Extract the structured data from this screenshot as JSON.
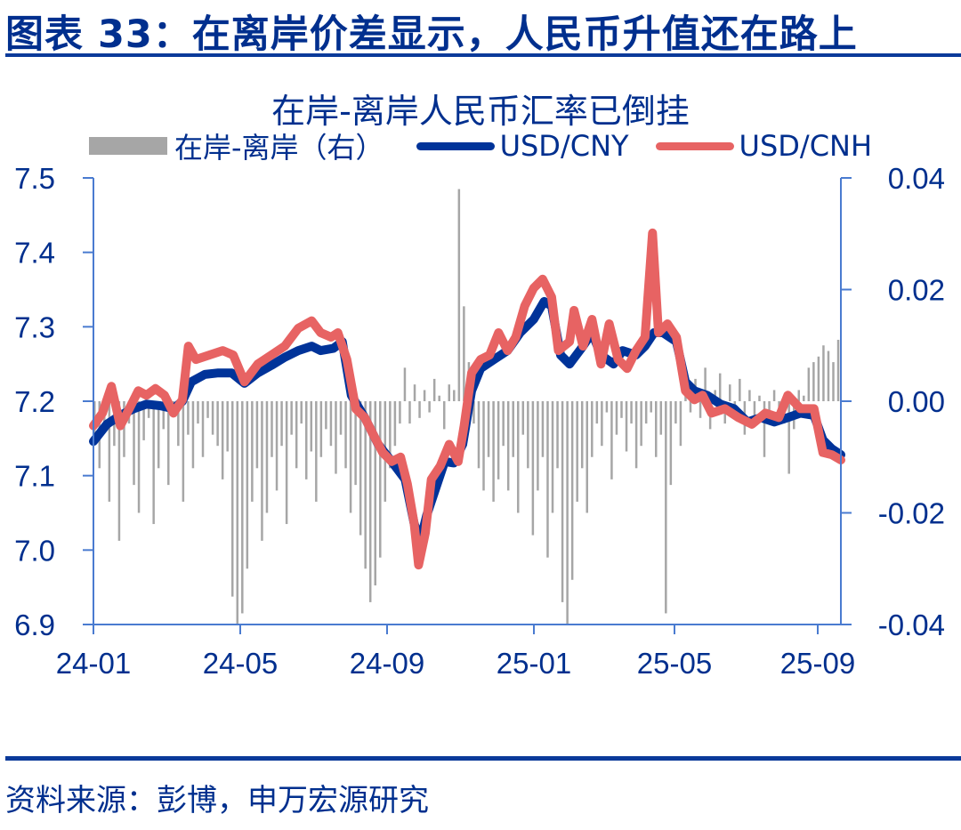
{
  "header": {
    "figure_title": "图表 33：在离岸价差显示，人民币升值还在路上"
  },
  "footer": {
    "source": "资料来源：彭博，申万宏源研究"
  },
  "colors": {
    "title_blue": "#002F8E",
    "axis_blue": "#4A7BD0",
    "cny_line": "#003399",
    "cnh_line": "#E76363",
    "spread_bar": "#A6A6A6"
  },
  "chart_data": {
    "type": "line+bar",
    "title": "在岸-离岸人民币汇率已倒挂",
    "legend": [
      {
        "label": "在岸-离岸（右）",
        "kind": "bar",
        "color": "#A6A6A6"
      },
      {
        "label": "USD/CNY",
        "kind": "line",
        "color": "#003399"
      },
      {
        "label": "USD/CNH",
        "kind": "line",
        "color": "#E76363"
      }
    ],
    "legend_position": "top",
    "grid": false,
    "x_axis": {
      "tick_labels": [
        "24-01",
        "24-05",
        "24-09",
        "25-01",
        "25-05",
        "25-09"
      ],
      "range": [
        "2024-01",
        "2025-09"
      ]
    },
    "y_left": {
      "ylim": [
        6.9,
        7.5
      ],
      "ticks": [
        7.5,
        7.4,
        7.3,
        7.2,
        7.1,
        7.0,
        6.9
      ],
      "tick_labels": [
        "7.5",
        "7.4",
        "7.3",
        "7.2",
        "7.1",
        "7.0",
        "6.9"
      ]
    },
    "y_right": {
      "ylim": [
        -0.04,
        0.04
      ],
      "ticks": [
        0.04,
        0.02,
        0.0,
        -0.02,
        -0.04
      ],
      "tick_labels": [
        "0.04",
        "0.02",
        "0.00",
        "-0.02",
        "-0.04"
      ]
    },
    "series": [
      {
        "name": "USD/CNY",
        "axis": "left",
        "x_frac": [
          0.0,
          0.018,
          0.036,
          0.054,
          0.071,
          0.089,
          0.107,
          0.119,
          0.131,
          0.149,
          0.167,
          0.185,
          0.202,
          0.22,
          0.238,
          0.256,
          0.274,
          0.292,
          0.304,
          0.321,
          0.333,
          0.345,
          0.363,
          0.381,
          0.399,
          0.417,
          0.429,
          0.437,
          0.446,
          0.458,
          0.47,
          0.482,
          0.494,
          0.506,
          0.518,
          0.536,
          0.554,
          0.571,
          0.589,
          0.603,
          0.613,
          0.625,
          0.637,
          0.655,
          0.667,
          0.679,
          0.696,
          0.708,
          0.726,
          0.738,
          0.75,
          0.762,
          0.78,
          0.792,
          0.804,
          0.821,
          0.839,
          0.857,
          0.875,
          0.893,
          0.911,
          0.929,
          0.946,
          0.964,
          0.976,
          0.988,
          1.0
        ],
        "values": [
          7.146,
          7.169,
          7.181,
          7.19,
          7.196,
          7.194,
          7.19,
          7.2,
          7.226,
          7.236,
          7.238,
          7.238,
          7.224,
          7.238,
          7.248,
          7.259,
          7.268,
          7.274,
          7.268,
          7.271,
          7.28,
          7.208,
          7.178,
          7.142,
          7.119,
          7.095,
          7.036,
          7.011,
          7.047,
          7.083,
          7.119,
          7.117,
          7.142,
          7.214,
          7.244,
          7.256,
          7.268,
          7.292,
          7.31,
          7.334,
          7.328,
          7.262,
          7.25,
          7.274,
          7.292,
          7.262,
          7.25,
          7.268,
          7.262,
          7.274,
          7.292,
          7.292,
          7.28,
          7.226,
          7.214,
          7.208,
          7.196,
          7.19,
          7.172,
          7.178,
          7.172,
          7.178,
          7.184,
          7.181,
          7.148,
          7.136,
          7.128
        ]
      },
      {
        "name": "USD/CNH",
        "axis": "left",
        "x_frac": [
          0.0,
          0.012,
          0.024,
          0.036,
          0.048,
          0.06,
          0.071,
          0.083,
          0.095,
          0.107,
          0.119,
          0.127,
          0.137,
          0.155,
          0.173,
          0.187,
          0.202,
          0.22,
          0.238,
          0.256,
          0.274,
          0.292,
          0.304,
          0.318,
          0.327,
          0.339,
          0.351,
          0.363,
          0.375,
          0.387,
          0.399,
          0.411,
          0.42,
          0.429,
          0.435,
          0.444,
          0.452,
          0.464,
          0.476,
          0.488,
          0.496,
          0.506,
          0.518,
          0.53,
          0.542,
          0.554,
          0.565,
          0.577,
          0.589,
          0.601,
          0.613,
          0.622,
          0.637,
          0.643,
          0.655,
          0.667,
          0.679,
          0.69,
          0.702,
          0.714,
          0.726,
          0.738,
          0.748,
          0.756,
          0.768,
          0.78,
          0.792,
          0.804,
          0.815,
          0.827,
          0.845,
          0.863,
          0.881,
          0.899,
          0.917,
          0.929,
          0.946,
          0.964,
          0.976,
          0.988,
          1.0
        ],
        "values": [
          7.167,
          7.184,
          7.22,
          7.167,
          7.19,
          7.214,
          7.208,
          7.217,
          7.208,
          7.184,
          7.202,
          7.274,
          7.256,
          7.262,
          7.268,
          7.262,
          7.226,
          7.25,
          7.262,
          7.274,
          7.298,
          7.308,
          7.292,
          7.286,
          7.292,
          7.256,
          7.19,
          7.178,
          7.154,
          7.131,
          7.119,
          7.125,
          7.089,
          7.036,
          6.98,
          7.023,
          7.095,
          7.113,
          7.142,
          7.119,
          7.167,
          7.238,
          7.256,
          7.262,
          7.292,
          7.268,
          7.286,
          7.328,
          7.352,
          7.364,
          7.34,
          7.268,
          7.28,
          7.322,
          7.274,
          7.31,
          7.25,
          7.304,
          7.256,
          7.244,
          7.268,
          7.286,
          7.426,
          7.292,
          7.304,
          7.286,
          7.214,
          7.202,
          7.208,
          7.184,
          7.19,
          7.178,
          7.169,
          7.184,
          7.178,
          7.208,
          7.19,
          7.19,
          7.131,
          7.128,
          7.121
        ]
      },
      {
        "name": "在岸-离岸（右）",
        "axis": "right",
        "type": "bar",
        "x_start_frac": 0.0,
        "x_end_frac": 0.995,
        "values": [
          -0.006,
          -0.012,
          -0.004,
          -0.018,
          -0.008,
          -0.025,
          -0.01,
          -0.004,
          -0.015,
          -0.02,
          -0.007,
          -0.003,
          -0.022,
          -0.012,
          -0.005,
          -0.015,
          -0.002,
          -0.008,
          -0.018,
          -0.006,
          -0.012,
          -0.004,
          -0.01,
          -0.003,
          -0.006,
          -0.008,
          -0.014,
          -0.009,
          -0.035,
          -0.04,
          -0.038,
          -0.03,
          -0.018,
          -0.012,
          -0.025,
          -0.02,
          -0.01,
          -0.016,
          -0.008,
          -0.022,
          -0.006,
          -0.012,
          -0.004,
          -0.014,
          -0.009,
          -0.018,
          -0.01,
          -0.005,
          -0.008,
          -0.013,
          -0.006,
          -0.012,
          -0.02,
          -0.015,
          -0.024,
          -0.03,
          -0.036,
          -0.033,
          -0.028,
          -0.018,
          -0.012,
          -0.008,
          -0.004,
          0.006,
          -0.004,
          0.003,
          -0.003,
          0.002,
          -0.002,
          0.004,
          0.001,
          -0.005,
          0.003,
          0.002,
          0.038,
          0.017,
          0.007,
          -0.004,
          -0.012,
          -0.016,
          -0.01,
          -0.018,
          -0.014,
          -0.008,
          -0.016,
          -0.01,
          -0.02,
          -0.006,
          -0.012,
          -0.024,
          -0.016,
          -0.01,
          -0.028,
          -0.02,
          -0.012,
          -0.036,
          -0.04,
          -0.032,
          -0.018,
          -0.012,
          -0.02,
          -0.01,
          -0.004,
          -0.008,
          -0.002,
          -0.014,
          -0.006,
          -0.003,
          -0.009,
          -0.004,
          -0.012,
          -0.008,
          -0.004,
          -0.002,
          -0.01,
          -0.006,
          -0.038,
          -0.015,
          -0.004,
          -0.008,
          0.003,
          -0.002,
          0.004,
          -0.003,
          0.006,
          -0.005,
          0.002,
          0.005,
          -0.004,
          0.003,
          -0.002,
          0.004,
          -0.006,
          0.002,
          -0.003,
          0.001,
          -0.01,
          -0.004,
          0.002,
          -0.002,
          -0.004,
          -0.013,
          -0.005,
          0.002,
          0.001,
          0.006,
          0.007,
          0.008,
          0.01,
          0.009,
          0.007,
          0.011
        ]
      }
    ]
  }
}
